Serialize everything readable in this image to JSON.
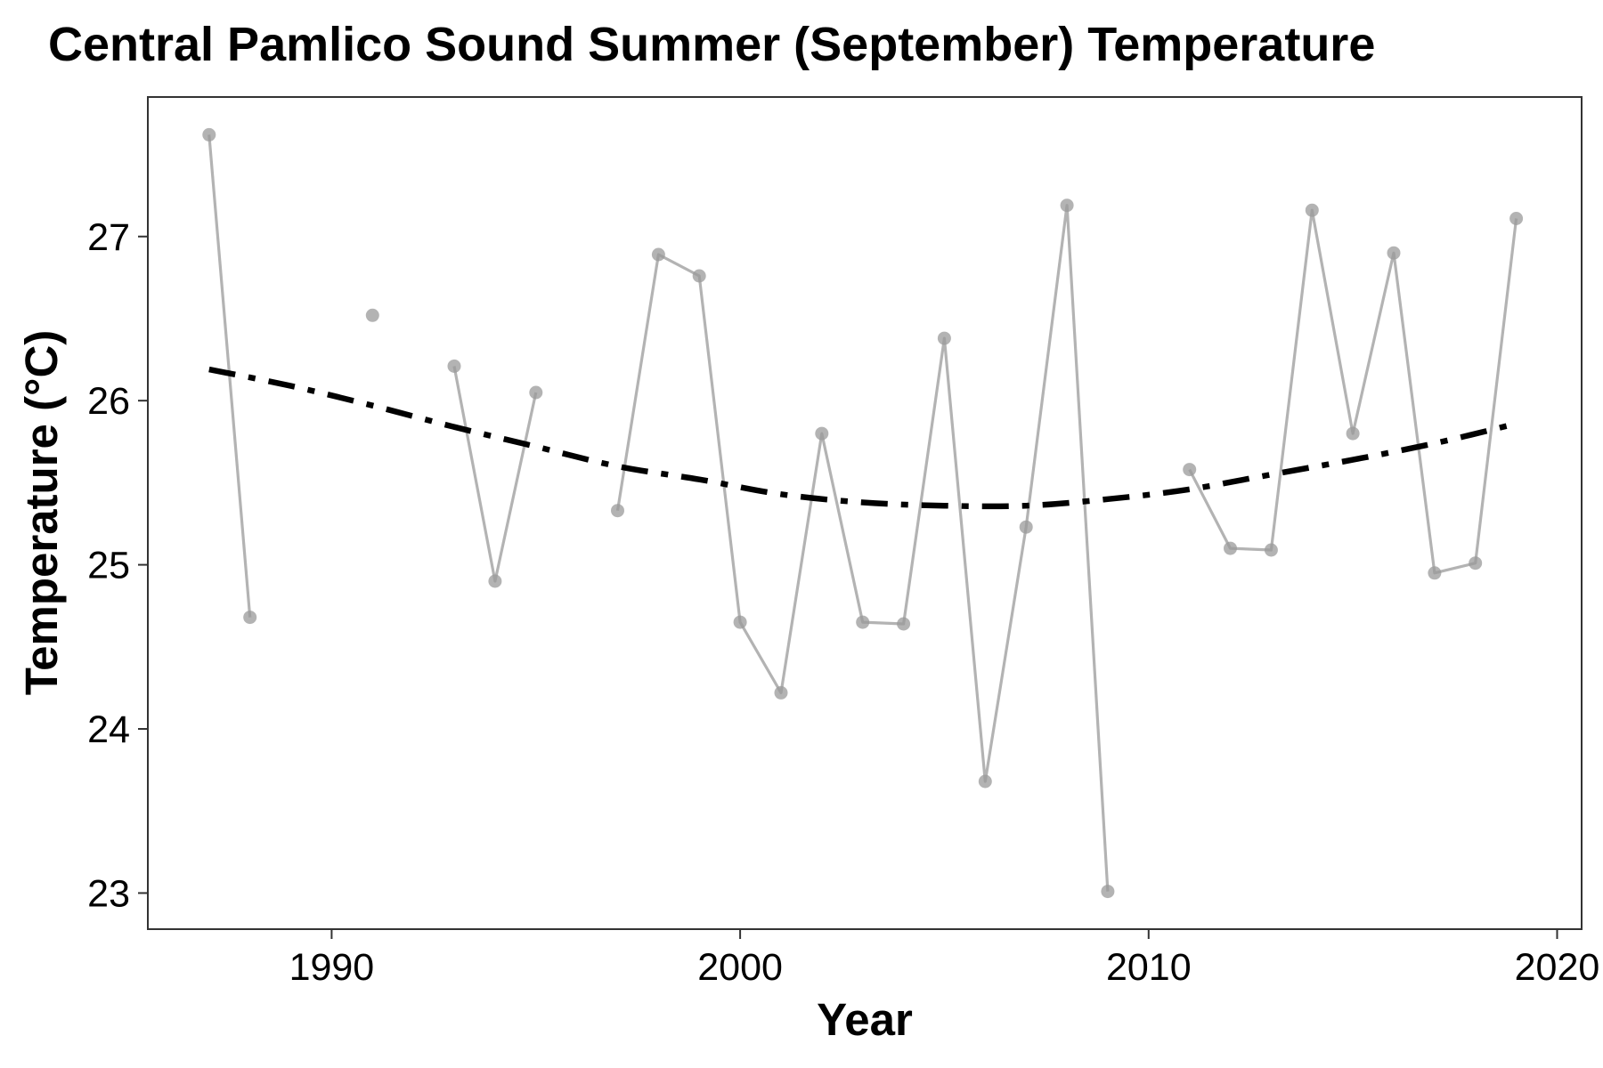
{
  "chart_data": {
    "type": "line",
    "title": "Central Pamlico Sound Summer (September) Temperature",
    "xlabel": "Year",
    "ylabel": "Temperature (°C)",
    "xlim": [
      1985.5,
      2020.6
    ],
    "ylim": [
      22.78,
      27.85
    ],
    "x_ticks": [
      1990,
      2000,
      2010,
      2020
    ],
    "y_ticks": [
      23,
      24,
      25,
      26,
      27
    ],
    "grid": false,
    "legend": "none",
    "colors": {
      "observed": "#b3b3b3",
      "observed_point": "#999999",
      "trend": "#000000",
      "panel_border": "#333333",
      "tick": "#333333"
    },
    "series": [
      {
        "style": "points-connected-by-line",
        "points": [
          {
            "x": 1987,
            "y": 27.62
          },
          {
            "x": 1988,
            "y": 24.68
          },
          {
            "x": 1989,
            "y": null
          },
          {
            "x": 1990,
            "y": null
          },
          {
            "x": 1991,
            "y": 26.52
          },
          {
            "x": 1992,
            "y": null
          },
          {
            "x": 1993,
            "y": 26.21
          },
          {
            "x": 1994,
            "y": 24.9
          },
          {
            "x": 1995,
            "y": 26.05
          },
          {
            "x": 1996,
            "y": null
          },
          {
            "x": 1997,
            "y": 25.33
          },
          {
            "x": 1998,
            "y": 26.89
          },
          {
            "x": 1999,
            "y": 26.76
          },
          {
            "x": 2000,
            "y": 24.65
          },
          {
            "x": 2001,
            "y": 24.22
          },
          {
            "x": 2002,
            "y": 25.8
          },
          {
            "x": 2003,
            "y": 24.65
          },
          {
            "x": 2004,
            "y": 24.64
          },
          {
            "x": 2005,
            "y": 26.38
          },
          {
            "x": 2006,
            "y": 23.68
          },
          {
            "x": 2007,
            "y": 25.23
          },
          {
            "x": 2008,
            "y": 27.19
          },
          {
            "x": 2009,
            "y": 23.01
          },
          {
            "x": 2010,
            "y": null
          },
          {
            "x": 2011,
            "y": 25.58
          },
          {
            "x": 2012,
            "y": 25.1
          },
          {
            "x": 2013,
            "y": 25.09
          },
          {
            "x": 2014,
            "y": 27.16
          },
          {
            "x": 2015,
            "y": 25.8
          },
          {
            "x": 2016,
            "y": 26.9
          },
          {
            "x": 2017,
            "y": 24.95
          },
          {
            "x": 2018,
            "y": 25.01
          },
          {
            "x": 2019,
            "y": 27.11
          }
        ]
      },
      {
        "style": "dash-dot",
        "points": [
          {
            "x": 1987,
            "y": 26.19
          },
          {
            "x": 1989,
            "y": 26.09
          },
          {
            "x": 1991,
            "y": 25.97
          },
          {
            "x": 1993,
            "y": 25.84
          },
          {
            "x": 1995,
            "y": 25.72
          },
          {
            "x": 1997,
            "y": 25.6
          },
          {
            "x": 1999,
            "y": 25.52
          },
          {
            "x": 2001,
            "y": 25.43
          },
          {
            "x": 2003,
            "y": 25.38
          },
          {
            "x": 2005,
            "y": 25.36
          },
          {
            "x": 2007,
            "y": 25.36
          },
          {
            "x": 2009,
            "y": 25.4
          },
          {
            "x": 2011,
            "y": 25.46
          },
          {
            "x": 2013,
            "y": 25.55
          },
          {
            "x": 2015,
            "y": 25.64
          },
          {
            "x": 2017,
            "y": 25.74
          },
          {
            "x": 2019,
            "y": 25.86
          }
        ]
      }
    ]
  }
}
